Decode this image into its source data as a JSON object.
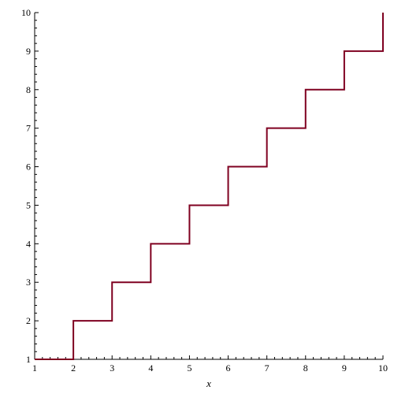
{
  "chart_data": {
    "type": "line",
    "xlabel": "x",
    "ylabel": "",
    "xlim": [
      1,
      10
    ],
    "ylim": [
      1,
      10
    ],
    "xticks": [
      1,
      2,
      3,
      4,
      5,
      6,
      7,
      8,
      9,
      10
    ],
    "yticks": [
      1,
      2,
      3,
      4,
      5,
      6,
      7,
      8,
      9,
      10
    ],
    "grid": false,
    "step_points": [
      [
        1,
        1
      ],
      [
        2,
        1
      ],
      [
        2,
        2
      ],
      [
        3,
        2
      ],
      [
        3,
        3
      ],
      [
        4,
        3
      ],
      [
        4,
        4
      ],
      [
        5,
        4
      ],
      [
        5,
        5
      ],
      [
        6,
        5
      ],
      [
        6,
        6
      ],
      [
        7,
        6
      ],
      [
        7,
        7
      ],
      [
        8,
        7
      ],
      [
        8,
        8
      ],
      [
        9,
        8
      ],
      [
        9,
        9
      ],
      [
        10,
        9
      ],
      [
        10,
        10
      ]
    ],
    "line_color": "#7f0020",
    "axis_color": "#000000"
  }
}
